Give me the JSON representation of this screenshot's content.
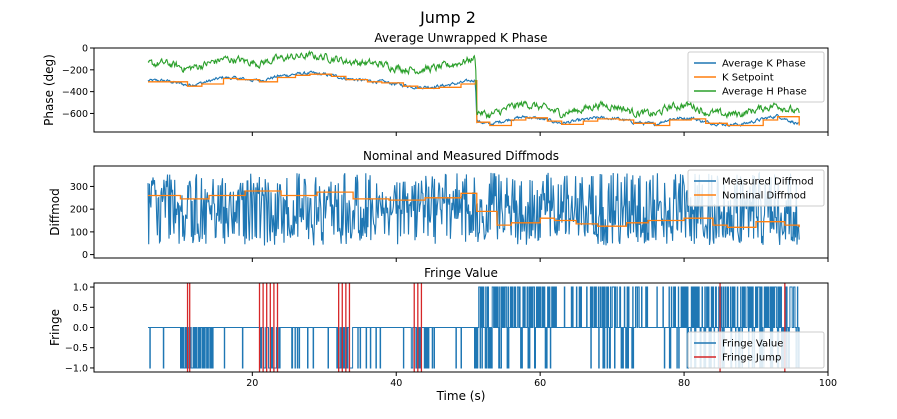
{
  "figure_title": "Jump 2",
  "colors": {
    "blue": "#1f77b4",
    "orange": "#ff7f0e",
    "green": "#2ca02c",
    "red": "#d62728"
  },
  "chart_data": [
    {
      "type": "line",
      "title": "Average Unwrapped K Phase",
      "ylabel": "Phase (deg)",
      "xlabel": "",
      "xlim": [
        -2,
        100
      ],
      "ylim": [
        -770,
        0
      ],
      "yticks": [
        0,
        -200,
        -400,
        -600
      ],
      "ytick_labels": [
        "0",
        "−200",
        "−400",
        "−600"
      ],
      "legend": "top-right",
      "series": [
        {
          "name": "Average K Phase",
          "color": "#1f77b4",
          "noise": 12,
          "x": [
            5.5,
            8,
            11,
            13,
            16,
            18,
            21,
            23.5,
            26,
            28,
            31,
            33,
            36,
            38,
            41,
            43,
            46,
            49,
            51,
            51.2,
            53,
            56,
            58,
            61,
            63,
            66,
            68,
            71,
            73,
            76,
            78,
            81,
            83,
            86,
            88,
            91,
            93,
            96
          ],
          "y": [
            -300,
            -300,
            -340,
            -320,
            -270,
            -280,
            -300,
            -260,
            -240,
            -230,
            -250,
            -280,
            -300,
            -310,
            -340,
            -360,
            -350,
            -320,
            -290,
            -670,
            -700,
            -650,
            -630,
            -660,
            -690,
            -660,
            -640,
            -650,
            -680,
            -700,
            -650,
            -640,
            -680,
            -700,
            -700,
            -650,
            -620,
            -700
          ]
        },
        {
          "name": "K Setpoint",
          "color": "#ff7f0e",
          "step": true,
          "noise": 0,
          "x": [
            5.5,
            8,
            11,
            13,
            16,
            18,
            21,
            23.5,
            26,
            28,
            31,
            33,
            36,
            38,
            41,
            43,
            46,
            49,
            51,
            51.2,
            53,
            56,
            58,
            61,
            63,
            66,
            68,
            71,
            73,
            76,
            78,
            81,
            83,
            86,
            88,
            91,
            93,
            96
          ],
          "y": [
            -310,
            -310,
            -350,
            -330,
            -280,
            -290,
            -310,
            -270,
            -250,
            -240,
            -260,
            -290,
            -310,
            -320,
            -350,
            -370,
            -360,
            -330,
            -300,
            -680,
            -710,
            -660,
            -640,
            -670,
            -700,
            -670,
            -650,
            -660,
            -690,
            -710,
            -660,
            -650,
            -690,
            -710,
            -710,
            -660,
            -630,
            -710
          ]
        },
        {
          "name": "Average H Phase",
          "color": "#2ca02c",
          "noise": 28,
          "x": [
            5.5,
            8,
            11,
            13,
            16,
            18,
            21,
            23.5,
            26,
            28,
            31,
            33,
            36,
            38,
            41,
            43,
            46,
            49,
            51,
            51.2,
            53,
            56,
            58,
            61,
            63,
            66,
            68,
            71,
            73,
            76,
            78,
            81,
            83,
            86,
            88,
            91,
            93,
            96
          ],
          "y": [
            -150,
            -140,
            -190,
            -160,
            -100,
            -110,
            -140,
            -100,
            -80,
            -70,
            -90,
            -120,
            -140,
            -150,
            -190,
            -200,
            -180,
            -130,
            -90,
            -580,
            -620,
            -540,
            -510,
            -560,
            -600,
            -560,
            -520,
            -540,
            -590,
            -610,
            -540,
            -520,
            -590,
            -610,
            -600,
            -550,
            -520,
            -600
          ]
        }
      ]
    },
    {
      "type": "line",
      "title": "Nominal and Measured Diffmods",
      "ylabel": "Diffmod",
      "xlabel": "",
      "xlim": [
        -2,
        100
      ],
      "ylim": [
        -15,
        390
      ],
      "yticks": [
        0,
        100,
        200,
        300
      ],
      "ytick_labels": [
        "0",
        "100",
        "200",
        "300"
      ],
      "legend": "top-right",
      "series": [
        {
          "name": "Measured Diffmod",
          "color": "#1f77b4",
          "noise": 90,
          "x": [
            5.5,
            10,
            15,
            20,
            25,
            30,
            35,
            40,
            45,
            50,
            51.2,
            55,
            60,
            65,
            70,
            75,
            80,
            85,
            90,
            96
          ],
          "y": [
            250,
            220,
            200,
            240,
            150,
            230,
            120,
            260,
            210,
            250,
            160,
            180,
            200,
            170,
            190,
            150,
            200,
            130,
            220,
            120
          ]
        },
        {
          "name": "Nominal Diffmod",
          "color": "#ff7f0e",
          "step": true,
          "noise": 0,
          "x": [
            5.5,
            10,
            14,
            19,
            24,
            29,
            34,
            39,
            44,
            49,
            51.2,
            54,
            56,
            60,
            62,
            65,
            68,
            72,
            75,
            80,
            84,
            86,
            90,
            94,
            96
          ],
          "y": [
            260,
            245,
            260,
            280,
            260,
            275,
            245,
            240,
            250,
            270,
            190,
            130,
            140,
            160,
            150,
            135,
            125,
            140,
            150,
            160,
            130,
            120,
            145,
            130,
            120
          ]
        }
      ]
    },
    {
      "type": "line",
      "title": "Fringe Value",
      "ylabel": "Fringe",
      "xlabel": "Time (s)",
      "xlim": [
        -2,
        100
      ],
      "ylim": [
        -1.1,
        1.1
      ],
      "yticks": [
        1.0,
        0.5,
        0.0,
        -0.5,
        -1.0
      ],
      "ytick_labels": [
        "1.0",
        "0.5",
        "0.0",
        "−0.5",
        "−1.0"
      ],
      "xticks": [
        20,
        40,
        60,
        80,
        100
      ],
      "xtick_labels": [
        "20",
        "40",
        "60",
        "80",
        "100"
      ],
      "legend": "bottom-right",
      "series": [
        {
          "name": "Fringe Value",
          "color": "#1f77b4"
        },
        {
          "name": "Fringe Jump",
          "color": "#d62728",
          "x": [
            11,
            11.3,
            21,
            21.5,
            22,
            22.5,
            23,
            23.5,
            32,
            32.5,
            33,
            33.5,
            42.5,
            43,
            43.5,
            85,
            94
          ]
        }
      ]
    }
  ]
}
